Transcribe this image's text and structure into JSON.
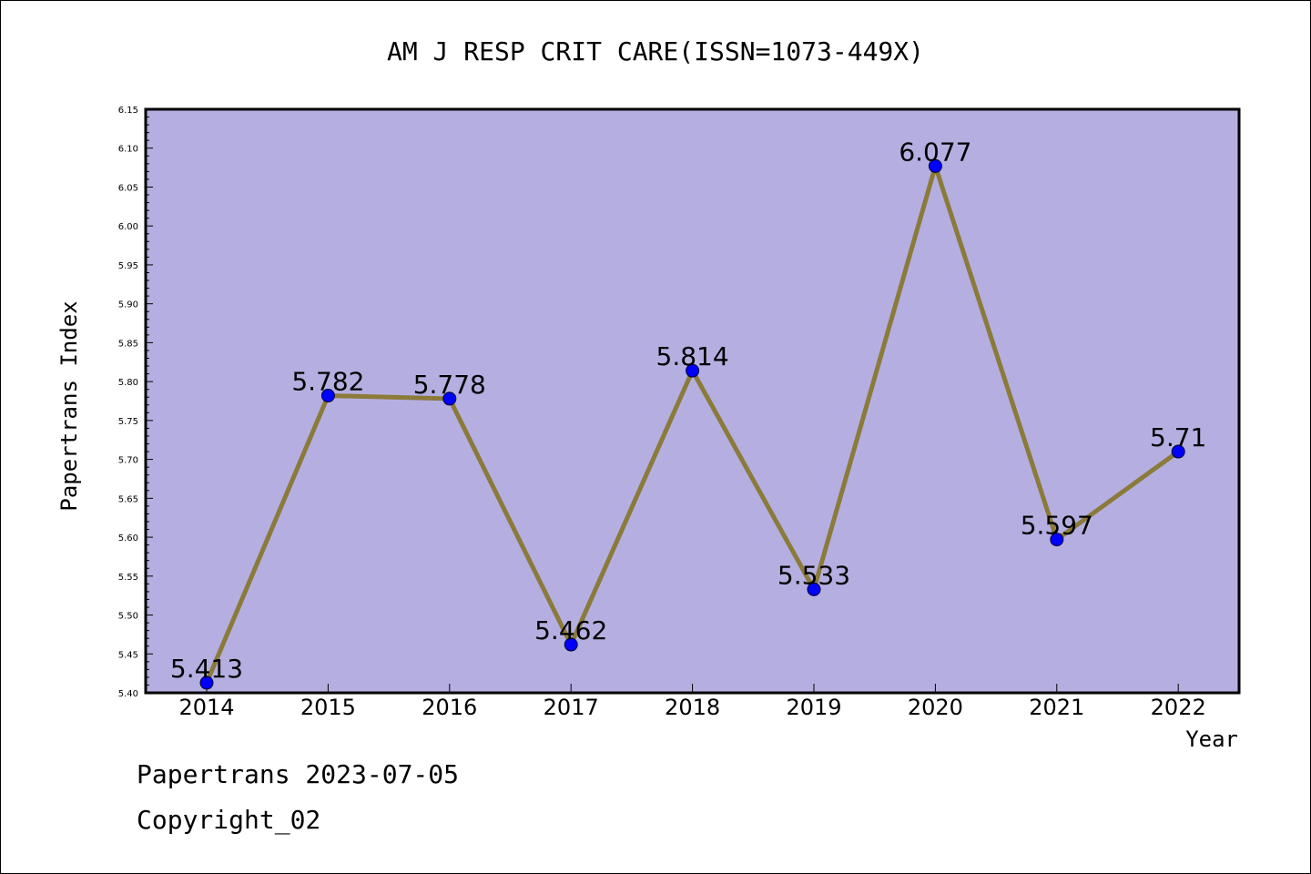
{
  "colors": {
    "plot_bg": "#b5afe1",
    "line": "#8b7a3a",
    "marker": "#0000ff",
    "axis": "#000000"
  },
  "chart_data": {
    "type": "line",
    "title": "AM J RESP CRIT CARE(ISSN=1073-449X)",
    "xlabel": "Year",
    "ylabel": "Papertrans Index",
    "categories": [
      "2014",
      "2015",
      "2016",
      "2017",
      "2018",
      "2019",
      "2020",
      "2021",
      "2022"
    ],
    "values": [
      5.413,
      5.782,
      5.778,
      5.462,
      5.814,
      5.533,
      6.077,
      5.597,
      5.71
    ],
    "data_labels": [
      "5.413",
      "5.782",
      "5.778",
      "5.462",
      "5.814",
      "5.533",
      "6.077",
      "5.597",
      "5.71"
    ],
    "ylim": [
      5.4,
      6.15
    ],
    "yticks": [
      "5.40",
      "5.45",
      "5.50",
      "5.55",
      "5.60",
      "5.65",
      "5.70",
      "5.75",
      "5.80",
      "5.85",
      "5.90",
      "5.95",
      "6.00",
      "6.05",
      "6.10",
      "6.15"
    ],
    "grid": false,
    "legend": "none"
  },
  "footer": {
    "line1": "Papertrans 2023-07-05",
    "line2": "Copyright_02"
  }
}
